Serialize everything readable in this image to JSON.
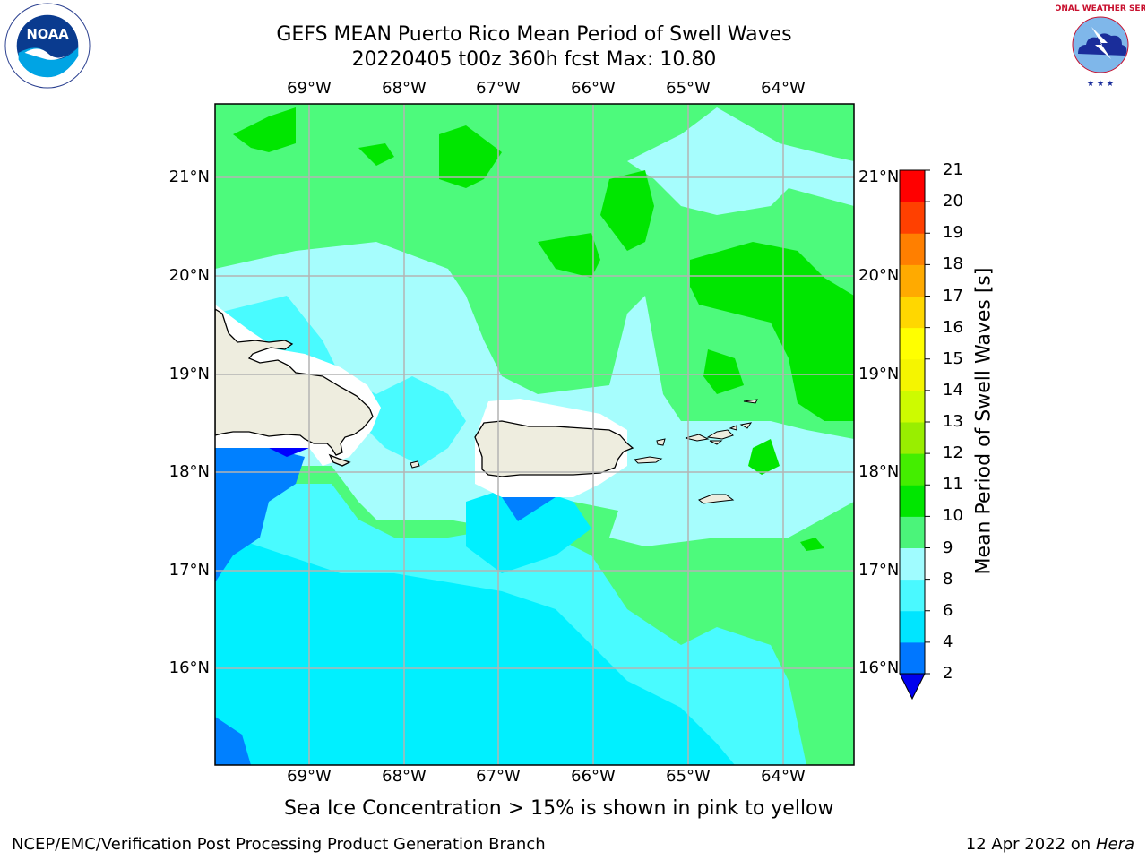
{
  "title": {
    "line1": "GEFS MEAN Puerto Rico Mean Period of Swell Waves",
    "line2": "20220405 t00z 360h fcst   Max: 10.80"
  },
  "logos": {
    "left": "noaa-logo",
    "right": "nws-logo",
    "left_text": "NOAA",
    "right_text": "NATIONAL WEATHER SERVICE"
  },
  "axes": {
    "longitudes": [
      "69°W",
      "68°W",
      "67°W",
      "66°W",
      "65°W",
      "64°W"
    ],
    "latitudes": [
      "21°N",
      "20°N",
      "19°N",
      "18°N",
      "17°N",
      "16°N"
    ]
  },
  "colorbar": {
    "title": "Mean Period of Swell Waves [s]",
    "levels": [
      "2",
      "4",
      "6",
      "8",
      "9",
      "10",
      "11",
      "12",
      "13",
      "14",
      "15",
      "16",
      "17",
      "18",
      "19",
      "20",
      "21"
    ],
    "colors": [
      "#0000ff",
      "#0077ff",
      "#00e5ff",
      "#4af9ff",
      "#a0fcff",
      "#4bf47a",
      "#00e600",
      "#44ee00",
      "#99ee00",
      "#cdfb00",
      "#f5f500",
      "#ffff00",
      "#ffd700",
      "#ffaa00",
      "#ff7f00",
      "#ff4000",
      "#ff0000"
    ],
    "under_color": "#0000ee"
  },
  "note": "Sea Ice Concentration > 15% is shown in pink to yellow",
  "footer": {
    "left": "NCEP/EMC/Verification Post Processing Product Generation Branch",
    "date": "12 Apr 2022 on ",
    "host": "Hera"
  },
  "colors": {
    "land": "#eeeddf",
    "grid": "#b4b4b4",
    "ocean_blue": "#0080ff",
    "cyan": "#00f0ff",
    "light_cyan": "#49fbff",
    "pale_cyan": "#a6fdfd",
    "light_green": "#4dfa7c",
    "green": "#00e600"
  }
}
